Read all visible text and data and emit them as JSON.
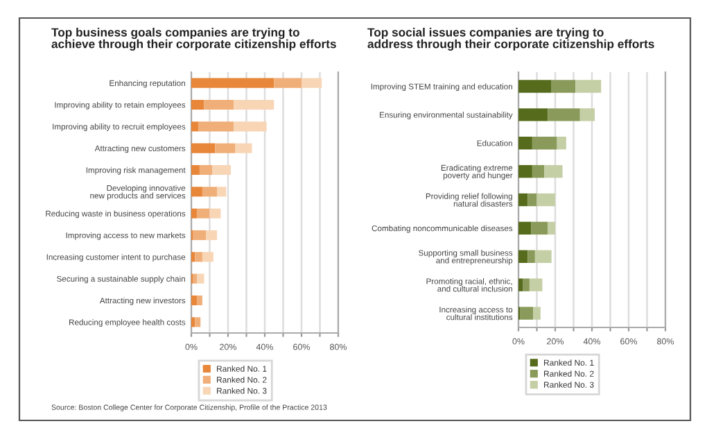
{
  "chart_data": [
    {
      "type": "bar",
      "orientation": "horizontal",
      "stacked": true,
      "title": "Top business goals companies are trying to\nachieve through their corporate citizenship efforts",
      "categories": [
        "Enhancing reputation",
        "Improving ability to retain employees",
        "Improving ability to recruit employees",
        "Attracting new customers",
        "Improving risk management",
        "Developing innovative\nnew products and services",
        "Reducing waste in business operations",
        "Improving access to new markets",
        "Increasing customer intent to purchase",
        "Securing a sustainable supply chain",
        "Attracting new investors",
        "Reducing employee health costs"
      ],
      "series": [
        {
          "name": "Ranked No. 1",
          "color": "#e8873a",
          "values": [
            45,
            7,
            4,
            13,
            4.5,
            6,
            3,
            1,
            2,
            1,
            3,
            2
          ]
        },
        {
          "name": "Ranked No. 2",
          "color": "#f0ae78",
          "values": [
            15,
            16,
            19,
            11,
            7,
            8,
            7,
            7,
            4,
            2,
            3,
            3
          ]
        },
        {
          "name": "Ranked No. 3",
          "color": "#f8d5b5",
          "values": [
            11,
            22,
            18,
            9,
            10,
            5,
            6,
            6,
            6,
            4,
            null,
            null
          ]
        }
      ],
      "xlim": [
        0,
        80
      ],
      "xticks": [
        {
          "value": 0,
          "label": "0%"
        },
        {
          "value": 10,
          "label": null
        },
        {
          "value": 20,
          "label": "20%"
        },
        {
          "value": 30,
          "label": null
        },
        {
          "value": 40,
          "label": "40%"
        },
        {
          "value": 50,
          "label": null
        },
        {
          "value": 60,
          "label": "60%"
        },
        {
          "value": 70,
          "label": null
        },
        {
          "value": 80,
          "label": "80%"
        }
      ],
      "grid": "x",
      "legend": "bottom",
      "annotations": [
        "Source: Boston College Center for Corporate Citizenship, Profile of the Practice 2013"
      ]
    },
    {
      "type": "bar",
      "orientation": "horizontal",
      "stacked": true,
      "title": "Top social issues companies are trying to\naddress through their corporate citizenship efforts",
      "categories": [
        "Improving STEM training and education",
        "Ensuring environmental sustainability",
        "Education",
        "Eradicating extreme\npoverty and hunger",
        "Providing relief following\nnatural disasters",
        "Combating noncommunicable diseases",
        "Supporting small business\nand entrepreneurship",
        "Promoting racial, ethnic,\nand cultural inclusion",
        "Increasing access to\ncultural institutions"
      ],
      "series": [
        {
          "name": "Ranked No. 1",
          "color": "#566c1c",
          "values": [
            18,
            16,
            7.5,
            7.5,
            5,
            7,
            5,
            2.5,
            1
          ]
        },
        {
          "name": "Ranked No. 2",
          "color": "#8a9a5b",
          "values": [
            13,
            17.5,
            13.5,
            6.5,
            5,
            9,
            4,
            3.5,
            7
          ]
        },
        {
          "name": "Ranked No. 3",
          "color": "#c5cfa5",
          "values": [
            14,
            8,
            5,
            10,
            10,
            4,
            9,
            7,
            4
          ]
        }
      ],
      "xlim": [
        0,
        80
      ],
      "xticks": [
        {
          "value": 0,
          "label": "0%"
        },
        {
          "value": 10,
          "label": null
        },
        {
          "value": 20,
          "label": "20%"
        },
        {
          "value": 30,
          "label": null
        },
        {
          "value": 40,
          "label": "40%"
        },
        {
          "value": 50,
          "label": null
        },
        {
          "value": 60,
          "label": "60%"
        },
        {
          "value": 70,
          "label": null
        },
        {
          "value": 80,
          "label": "80%"
        }
      ],
      "grid": "x",
      "legend": "bottom"
    }
  ]
}
